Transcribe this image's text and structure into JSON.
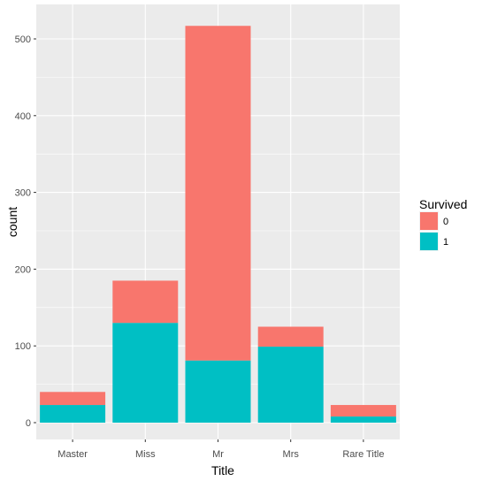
{
  "chart_data": {
    "type": "bar",
    "stacked": true,
    "categories": [
      "Master",
      "Miss",
      "Mr",
      "Mrs",
      "Rare Title"
    ],
    "series": [
      {
        "name": "0",
        "values": [
          17,
          55,
          436,
          26,
          15
        ],
        "color": "#F8766D"
      },
      {
        "name": "1",
        "values": [
          23,
          130,
          81,
          99,
          8
        ],
        "color": "#00BFC4"
      }
    ],
    "xlabel": "Title",
    "ylabel": "count",
    "ylim": [
      0,
      540
    ],
    "yticks": [
      0,
      100,
      200,
      300,
      400,
      500
    ],
    "grid": true,
    "legend": {
      "title": "Survived",
      "position": "right"
    },
    "panel_background": "#EBEBEB",
    "grid_color": "#FFFFFF"
  }
}
